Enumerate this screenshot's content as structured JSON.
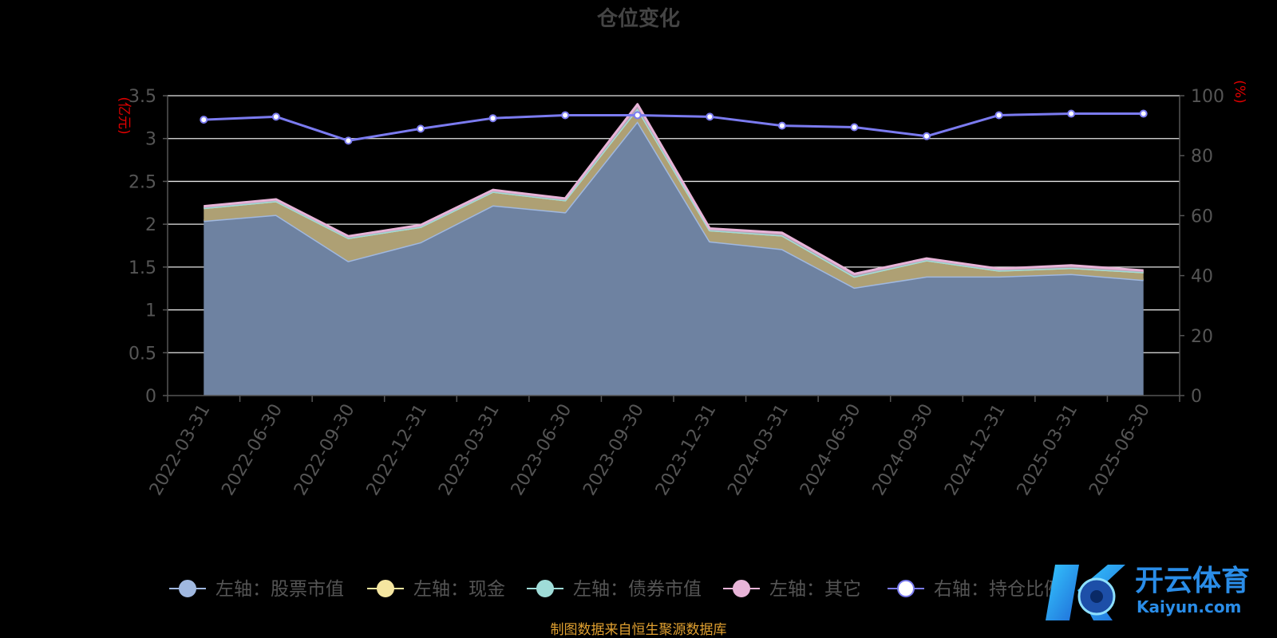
{
  "chart_data": {
    "type": "area",
    "title": "仓位变化",
    "categories": [
      "2022-03-31",
      "2022-06-30",
      "2022-09-30",
      "2022-12-31",
      "2023-03-31",
      "2023-06-30",
      "2023-09-30",
      "2023-12-31",
      "2024-03-31",
      "2024-06-30",
      "2024-09-30",
      "2024-12-31",
      "2025-03-31",
      "2025-06-30"
    ],
    "left_axis": {
      "label": "(亿元)",
      "range": [
        0,
        3.5
      ],
      "ticks": [
        "0",
        "0.5",
        "1",
        "1.5",
        "2",
        "2.5",
        "3",
        "3.5"
      ]
    },
    "right_axis": {
      "label": "(%)",
      "range": [
        0,
        100
      ],
      "ticks": [
        "0",
        "20",
        "40",
        "60",
        "80",
        "100"
      ]
    },
    "stacked": true,
    "grid": true,
    "series": [
      {
        "name": "左轴：股票市值",
        "axis": "left",
        "color": "#a0b8e0",
        "values": [
          2.04,
          2.11,
          1.57,
          1.79,
          2.22,
          2.14,
          3.2,
          1.8,
          1.71,
          1.26,
          1.39,
          1.39,
          1.42,
          1.35
        ]
      },
      {
        "name": "左轴：现金",
        "axis": "left",
        "color": "#f5e6a0",
        "values": [
          0.15,
          0.16,
          0.27,
          0.18,
          0.16,
          0.14,
          0.15,
          0.13,
          0.16,
          0.13,
          0.19,
          0.07,
          0.07,
          0.09
        ]
      },
      {
        "name": "左轴：债券市值",
        "axis": "left",
        "color": "#9fdcd8",
        "values": [
          0,
          0,
          0,
          0,
          0,
          0,
          0,
          0,
          0,
          0,
          0,
          0,
          0,
          0
        ]
      },
      {
        "name": "左轴：其它",
        "axis": "left",
        "color": "#e8b4d8",
        "values": [
          0.02,
          0.02,
          0.02,
          0.02,
          0.02,
          0.02,
          0.05,
          0.02,
          0.03,
          0.03,
          0.02,
          0.02,
          0.03,
          0.02
        ]
      },
      {
        "name": "右轴：持仓比例",
        "axis": "right",
        "color": "#7b7bf0",
        "values": [
          92,
          93,
          85,
          89,
          92.5,
          93.5,
          93.5,
          93,
          90,
          89.5,
          86.5,
          93.5,
          94,
          94
        ]
      }
    ],
    "legend_position": "bottom"
  },
  "footer": {
    "source": "制图数据来自恒生聚源数据库"
  },
  "watermark": {
    "brand": "开云体育",
    "url": "Kaiyun.com"
  }
}
